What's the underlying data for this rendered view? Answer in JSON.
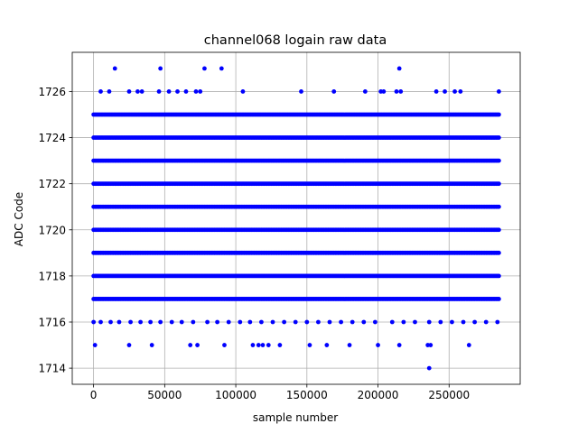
{
  "chart_data": {
    "type": "scatter",
    "title": "channel068 logain raw data",
    "xlabel": "sample number",
    "ylabel": "ADC Code",
    "xlim": [
      -15000,
      300000
    ],
    "ylim": [
      1713.3,
      1727.7
    ],
    "xticks": [
      0,
      50000,
      100000,
      150000,
      200000,
      250000
    ],
    "xtick_labels": [
      "0",
      "50000",
      "100000",
      "150000",
      "200000",
      "250000"
    ],
    "yticks": [
      1714,
      1716,
      1718,
      1720,
      1722,
      1724,
      1726
    ],
    "ytick_labels": [
      "1714",
      "1716",
      "1718",
      "1720",
      "1722",
      "1724",
      "1726"
    ],
    "grid": true,
    "marker_color": "#0000ff",
    "series": [
      {
        "dense_ranges": [
          {
            "y": 1717,
            "x_start": 0,
            "x_end": 285000
          },
          {
            "y": 1718,
            "x_start": 0,
            "x_end": 285000
          },
          {
            "y": 1719,
            "x_start": 0,
            "x_end": 285000
          },
          {
            "y": 1720,
            "x_start": 0,
            "x_end": 285000
          },
          {
            "y": 1721,
            "x_start": 0,
            "x_end": 285000
          },
          {
            "y": 1722,
            "x_start": 0,
            "x_end": 285000
          },
          {
            "y": 1723,
            "x_start": 0,
            "x_end": 285000
          },
          {
            "y": 1724,
            "x_start": 0,
            "x_end": 285000
          },
          {
            "y": 1725,
            "x_start": 0,
            "x_end": 285000
          }
        ],
        "points": [
          {
            "x": 0,
            "y": 1716
          },
          {
            "x": 5000,
            "y": 1716
          },
          {
            "x": 12000,
            "y": 1716
          },
          {
            "x": 18000,
            "y": 1716
          },
          {
            "x": 26000,
            "y": 1716
          },
          {
            "x": 33000,
            "y": 1716
          },
          {
            "x": 40000,
            "y": 1716
          },
          {
            "x": 47000,
            "y": 1716
          },
          {
            "x": 55000,
            "y": 1716
          },
          {
            "x": 62000,
            "y": 1716
          },
          {
            "x": 70000,
            "y": 1716
          },
          {
            "x": 80000,
            "y": 1716
          },
          {
            "x": 87000,
            "y": 1716
          },
          {
            "x": 95000,
            "y": 1716
          },
          {
            "x": 103000,
            "y": 1716
          },
          {
            "x": 110000,
            "y": 1716
          },
          {
            "x": 118000,
            "y": 1716
          },
          {
            "x": 126000,
            "y": 1716
          },
          {
            "x": 134000,
            "y": 1716
          },
          {
            "x": 142000,
            "y": 1716
          },
          {
            "x": 150000,
            "y": 1716
          },
          {
            "x": 158000,
            "y": 1716
          },
          {
            "x": 166000,
            "y": 1716
          },
          {
            "x": 174000,
            "y": 1716
          },
          {
            "x": 182000,
            "y": 1716
          },
          {
            "x": 190000,
            "y": 1716
          },
          {
            "x": 198000,
            "y": 1716
          },
          {
            "x": 210000,
            "y": 1716
          },
          {
            "x": 218000,
            "y": 1716
          },
          {
            "x": 226000,
            "y": 1716
          },
          {
            "x": 236000,
            "y": 1716
          },
          {
            "x": 244000,
            "y": 1716
          },
          {
            "x": 252000,
            "y": 1716
          },
          {
            "x": 260000,
            "y": 1716
          },
          {
            "x": 268000,
            "y": 1716
          },
          {
            "x": 276000,
            "y": 1716
          },
          {
            "x": 284000,
            "y": 1716
          },
          {
            "x": 1000,
            "y": 1715
          },
          {
            "x": 25000,
            "y": 1715
          },
          {
            "x": 41000,
            "y": 1715
          },
          {
            "x": 68000,
            "y": 1715
          },
          {
            "x": 73000,
            "y": 1715
          },
          {
            "x": 92000,
            "y": 1715
          },
          {
            "x": 112000,
            "y": 1715
          },
          {
            "x": 116000,
            "y": 1715
          },
          {
            "x": 119000,
            "y": 1715
          },
          {
            "x": 123000,
            "y": 1715
          },
          {
            "x": 131000,
            "y": 1715
          },
          {
            "x": 152000,
            "y": 1715
          },
          {
            "x": 164000,
            "y": 1715
          },
          {
            "x": 180000,
            "y": 1715
          },
          {
            "x": 200000,
            "y": 1715
          },
          {
            "x": 215000,
            "y": 1715
          },
          {
            "x": 235000,
            "y": 1715
          },
          {
            "x": 237000,
            "y": 1715
          },
          {
            "x": 264000,
            "y": 1715
          },
          {
            "x": 236000,
            "y": 1714
          },
          {
            "x": 5000,
            "y": 1726
          },
          {
            "x": 11000,
            "y": 1726
          },
          {
            "x": 25000,
            "y": 1726
          },
          {
            "x": 31000,
            "y": 1726
          },
          {
            "x": 34000,
            "y": 1726
          },
          {
            "x": 46000,
            "y": 1726
          },
          {
            "x": 53000,
            "y": 1726
          },
          {
            "x": 59000,
            "y": 1726
          },
          {
            "x": 65000,
            "y": 1726
          },
          {
            "x": 72000,
            "y": 1726
          },
          {
            "x": 75000,
            "y": 1726
          },
          {
            "x": 105000,
            "y": 1726
          },
          {
            "x": 146000,
            "y": 1726
          },
          {
            "x": 169000,
            "y": 1726
          },
          {
            "x": 191000,
            "y": 1726
          },
          {
            "x": 202000,
            "y": 1726
          },
          {
            "x": 204000,
            "y": 1726
          },
          {
            "x": 213000,
            "y": 1726
          },
          {
            "x": 216000,
            "y": 1726
          },
          {
            "x": 241000,
            "y": 1726
          },
          {
            "x": 247000,
            "y": 1726
          },
          {
            "x": 254000,
            "y": 1726
          },
          {
            "x": 258000,
            "y": 1726
          },
          {
            "x": 285000,
            "y": 1726
          },
          {
            "x": 15000,
            "y": 1727
          },
          {
            "x": 47000,
            "y": 1727
          },
          {
            "x": 78000,
            "y": 1727
          },
          {
            "x": 90000,
            "y": 1727
          },
          {
            "x": 215000,
            "y": 1727
          }
        ]
      }
    ]
  }
}
